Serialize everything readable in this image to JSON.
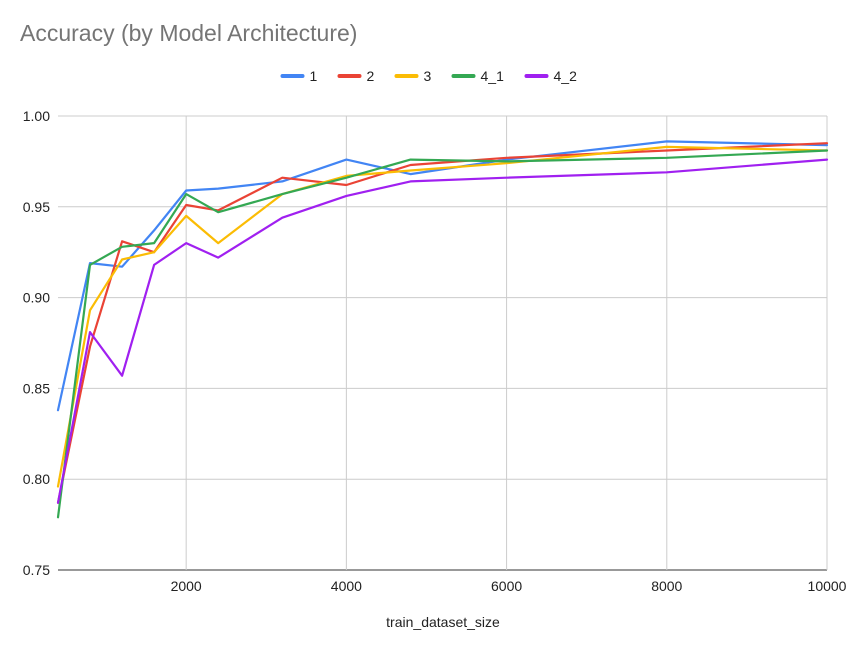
{
  "chart_data": {
    "type": "line",
    "title": "Accuracy (by Model Architecture)",
    "xlabel": "train_dataset_size",
    "ylabel": "",
    "xlim": [
      400,
      10000
    ],
    "ylim": [
      0.75,
      1.0
    ],
    "x_ticks": [
      2000,
      4000,
      6000,
      8000,
      10000
    ],
    "x_tick_labels": [
      "2000",
      "4000",
      "6000",
      "8000",
      "10000"
    ],
    "y_ticks": [
      0.75,
      0.8,
      0.85,
      0.9,
      0.95,
      1.0
    ],
    "y_tick_labels": [
      "0.75",
      "0.80",
      "0.85",
      "0.90",
      "0.95",
      "1.00"
    ],
    "grid": true,
    "legend_position": "top",
    "series": [
      {
        "name": "1",
        "color": "#4285F4",
        "points": [
          [
            400,
            0.838
          ],
          [
            800,
            0.919
          ],
          [
            1200,
            0.917
          ],
          [
            1600,
            0.937
          ],
          [
            2000,
            0.959
          ],
          [
            2400,
            0.96
          ],
          [
            3200,
            0.964
          ],
          [
            4000,
            0.976
          ],
          [
            4800,
            0.968
          ],
          [
            6000,
            0.976
          ],
          [
            8000,
            0.986
          ],
          [
            10000,
            0.984
          ]
        ]
      },
      {
        "name": "2",
        "color": "#EA4335",
        "points": [
          [
            400,
            0.787
          ],
          [
            800,
            0.873
          ],
          [
            1200,
            0.931
          ],
          [
            1600,
            0.925
          ],
          [
            2000,
            0.951
          ],
          [
            2400,
            0.948
          ],
          [
            3200,
            0.966
          ],
          [
            4000,
            0.962
          ],
          [
            4800,
            0.973
          ],
          [
            6000,
            0.977
          ],
          [
            8000,
            0.981
          ],
          [
            10000,
            0.985
          ]
        ]
      },
      {
        "name": "3",
        "color": "#FBBC04",
        "points": [
          [
            400,
            0.796
          ],
          [
            800,
            0.893
          ],
          [
            1200,
            0.921
          ],
          [
            1600,
            0.925
          ],
          [
            2000,
            0.945
          ],
          [
            2400,
            0.93
          ],
          [
            3200,
            0.957
          ],
          [
            4000,
            0.967
          ],
          [
            4800,
            0.97
          ],
          [
            6000,
            0.974
          ],
          [
            8000,
            0.983
          ],
          [
            10000,
            0.981
          ]
        ]
      },
      {
        "name": "4_1",
        "color": "#34A853",
        "points": [
          [
            400,
            0.779
          ],
          [
            800,
            0.918
          ],
          [
            1200,
            0.928
          ],
          [
            1600,
            0.93
          ],
          [
            2000,
            0.957
          ],
          [
            2400,
            0.947
          ],
          [
            3200,
            0.957
          ],
          [
            4000,
            0.966
          ],
          [
            4800,
            0.976
          ],
          [
            6000,
            0.975
          ],
          [
            8000,
            0.977
          ],
          [
            10000,
            0.981
          ]
        ]
      },
      {
        "name": "4_2",
        "color": "#A020F0",
        "points": [
          [
            400,
            0.787
          ],
          [
            800,
            0.881
          ],
          [
            1200,
            0.857
          ],
          [
            1600,
            0.918
          ],
          [
            2000,
            0.93
          ],
          [
            2400,
            0.922
          ],
          [
            3200,
            0.944
          ],
          [
            4000,
            0.956
          ],
          [
            4800,
            0.964
          ],
          [
            6000,
            0.966
          ],
          [
            8000,
            0.969
          ],
          [
            10000,
            0.976
          ]
        ]
      }
    ]
  }
}
